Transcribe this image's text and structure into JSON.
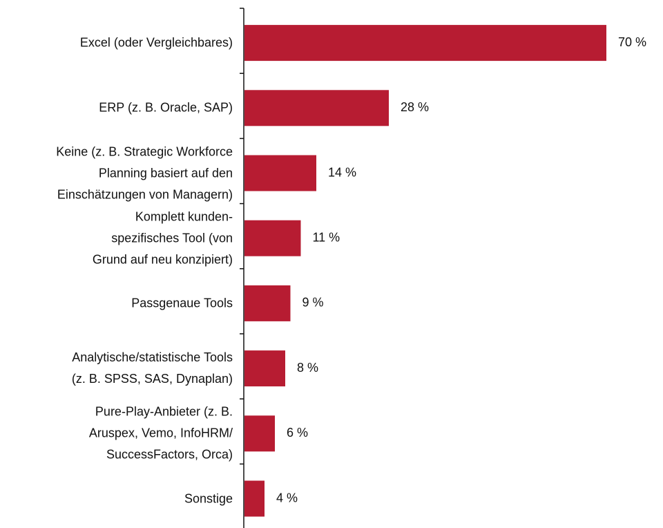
{
  "chart_data": {
    "type": "bar",
    "orientation": "horizontal",
    "categories": [
      "Excel (oder Vergleichbares)",
      "ERP (z. B. Oracle, SAP)",
      "Keine (z. B. Strategic Workforce\nPlanning basiert auf den\nEinschätzungen von Managern)",
      "Komplett kunden-\nspezifisches Tool (von\nGrund auf neu konzipiert)",
      "Passgenaue Tools",
      "Analytische/statistische Tools\n(z. B. SPSS, SAS, Dynaplan)",
      "Pure-Play-Anbieter (z. B.\nAruspex, Vemo, InfoHRM/\nSuccessFactors, Orca)",
      "Sonstige"
    ],
    "values": [
      70,
      28,
      14,
      11,
      9,
      8,
      6,
      4
    ],
    "value_labels": [
      "70 %",
      "28 %",
      "14 %",
      "11 %",
      "9 %",
      "8 %",
      "6 %",
      "4 %"
    ],
    "color": "#b71c32"
  }
}
